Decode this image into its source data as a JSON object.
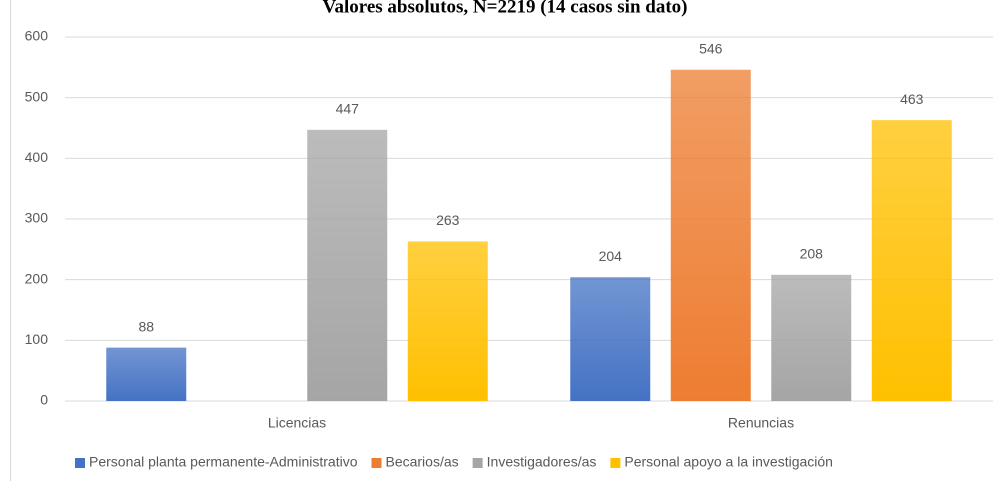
{
  "chart_data": {
    "type": "bar",
    "title": "Valores absolutos, N=2219 (14 casos sin dato)",
    "categories": [
      "Licencias",
      "Renuncias"
    ],
    "series": [
      {
        "name": "Personal planta permanente-Administrativo",
        "color": "#4472c4",
        "values": [
          88,
          204
        ]
      },
      {
        "name": "Becarios/as",
        "color": "#ed7d31",
        "values": [
          null,
          546
        ]
      },
      {
        "name": "Investigadores/as",
        "color": "#a5a5a5",
        "values": [
          447,
          208
        ]
      },
      {
        "name": "Personal apoyo a la investigación",
        "color": "#ffc000",
        "values": [
          263,
          463
        ]
      }
    ],
    "ylim": [
      0,
      600
    ],
    "yticks": [
      0,
      100,
      200,
      300,
      400,
      500,
      600
    ],
    "grid": true,
    "legend": "bottom"
  }
}
